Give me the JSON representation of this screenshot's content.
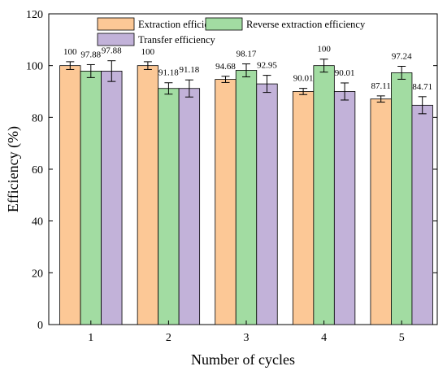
{
  "chart_data": {
    "type": "bar",
    "categories": [
      "1",
      "2",
      "3",
      "4",
      "5"
    ],
    "xlabel": "Number of cycles",
    "ylabel": "Efficiency (%)",
    "ylim": [
      0,
      120
    ],
    "yticks": [
      0,
      20,
      40,
      60,
      80,
      100,
      120
    ],
    "grid": false,
    "legend_placement": "top-center",
    "series": [
      {
        "name": "Extraction efficiency",
        "color": "#FCC896",
        "values": [
          100,
          100,
          94.68,
          90.01,
          87.11
        ],
        "value_labels": [
          "100",
          "100",
          "94.68",
          "90.01",
          "87.11"
        ],
        "errors": [
          1.5,
          1.5,
          1.2,
          1.2,
          1.2
        ]
      },
      {
        "name": "Reverse extraction efficiency",
        "color": "#A2DCA2",
        "values": [
          97.88,
          91.18,
          98.17,
          100,
          97.24
        ],
        "value_labels": [
          "97.88",
          "91.18",
          "98.17",
          "100",
          "97.24"
        ],
        "errors": [
          2.5,
          2.2,
          2.5,
          2.5,
          2.5
        ]
      },
      {
        "name": "Transfer efficiency",
        "color": "#C2B2D9",
        "values": [
          97.88,
          91.18,
          92.95,
          90.01,
          84.71
        ],
        "value_labels": [
          "97.88",
          "91.18",
          "92.95",
          "90.01",
          "84.71"
        ],
        "errors": [
          4.0,
          3.3,
          3.3,
          3.3,
          3.3
        ]
      }
    ]
  }
}
